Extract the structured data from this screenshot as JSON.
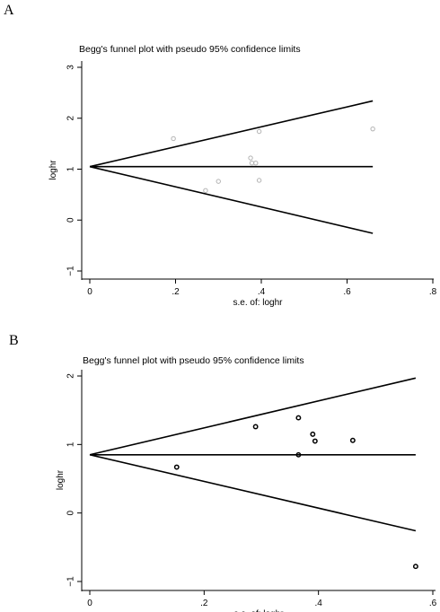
{
  "chart_data": [
    {
      "type": "scatter",
      "panel_label": "A",
      "title": "Begg's funnel plot with pseudo 95% confidence limits",
      "xlabel": "s.e. of: loghr",
      "ylabel": "loghr",
      "xlim": [
        0,
        0.8
      ],
      "ylim": [
        -1,
        3
      ],
      "x_ticks": [
        "0",
        ".2",
        ".4",
        ".6",
        ".8"
      ],
      "y_ticks": [
        "−1",
        "0",
        "1",
        "2",
        "3"
      ],
      "pooled_estimate": 1.05,
      "limit_line_end_x": 0.66,
      "upper_limit_end_y": 2.34,
      "lower_limit_end_y": -0.26,
      "marker_color": "#b3b3b3",
      "points": [
        {
          "x": 0.195,
          "y": 1.6
        },
        {
          "x": 0.27,
          "y": 0.58
        },
        {
          "x": 0.3,
          "y": 0.76
        },
        {
          "x": 0.375,
          "y": 1.22
        },
        {
          "x": 0.378,
          "y": 1.12
        },
        {
          "x": 0.387,
          "y": 1.12
        },
        {
          "x": 0.395,
          "y": 1.74
        },
        {
          "x": 0.395,
          "y": 0.78
        },
        {
          "x": 0.66,
          "y": 1.79
        }
      ]
    },
    {
      "type": "scatter",
      "panel_label": "B",
      "title": "Begg's funnel plot with pseudo 95% confidence limits",
      "xlabel": "s.e. of: loghr",
      "ylabel": "loghr",
      "xlim": [
        0,
        0.6
      ],
      "ylim": [
        -1,
        2
      ],
      "x_ticks": [
        "0",
        ".2",
        ".4",
        ".6"
      ],
      "y_ticks": [
        "−1",
        "0",
        "1",
        "2"
      ],
      "pooled_estimate": 0.85,
      "limit_line_end_x": 0.57,
      "upper_limit_end_y": 1.97,
      "lower_limit_end_y": -0.26,
      "marker_color": "#000000",
      "points": [
        {
          "x": 0.152,
          "y": 0.67
        },
        {
          "x": 0.29,
          "y": 1.26
        },
        {
          "x": 0.365,
          "y": 1.39
        },
        {
          "x": 0.365,
          "y": 0.85
        },
        {
          "x": 0.39,
          "y": 1.15
        },
        {
          "x": 0.394,
          "y": 1.05
        },
        {
          "x": 0.46,
          "y": 1.06
        },
        {
          "x": 0.57,
          "y": -0.78
        }
      ]
    }
  ]
}
